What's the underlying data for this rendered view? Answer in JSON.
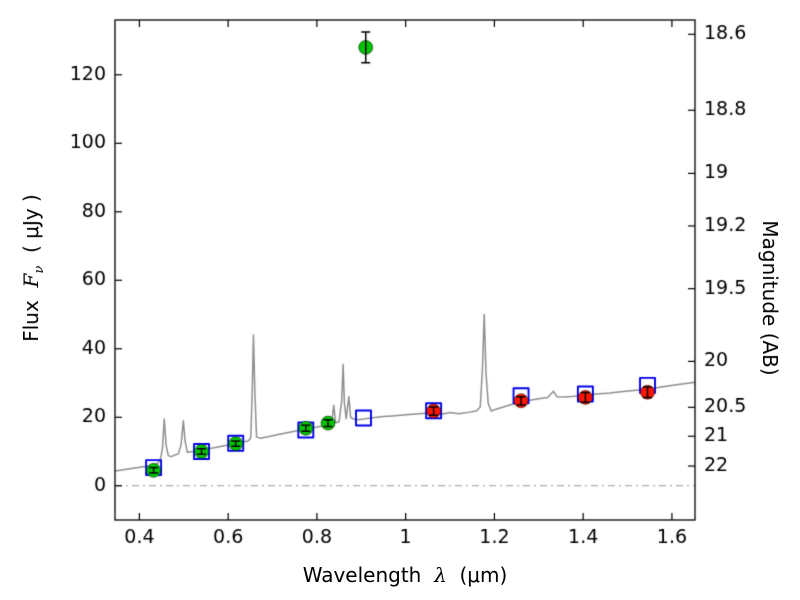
{
  "axes": {
    "xlabel_word": "Wavelength",
    "xlabel_sym": "λ",
    "xlabel_unit": "(μm)",
    "ylabel_flux": "Flux",
    "ylabel_F": "F",
    "ylabel_nu": "ν",
    "ylabel_unit": "( μJy )",
    "y2label": "Magnitude (AB)"
  },
  "chart_data": {
    "type": "scatter",
    "title": "",
    "xlabel": "Wavelength λ (μm)",
    "ylabel": "Flux Fν ( μJy )",
    "y2label": "Magnitude (AB)",
    "xlim": [
      0.345,
      1.652
    ],
    "ylim": [
      -10,
      136
    ],
    "grid": false,
    "legend": "none",
    "xticks": {
      "values": [
        0.4,
        0.6,
        0.8,
        1.0,
        1.2,
        1.4,
        1.6
      ],
      "labels": [
        "0.4",
        "0.6",
        "0.8",
        "1",
        "1.2",
        "1.4",
        "1.6"
      ]
    },
    "yticks": {
      "values": [
        0,
        20,
        40,
        60,
        80,
        100,
        120
      ],
      "labels": [
        "0",
        "20",
        "40",
        "60",
        "80",
        "100",
        "120"
      ]
    },
    "mag_axis": {
      "zeropoint_ab": 23.9,
      "ticks": [
        18.6,
        18.8,
        19,
        19.2,
        19.5,
        20,
        20.5,
        21,
        22
      ],
      "labels": [
        "18.6",
        "18.8",
        "19",
        "19.2",
        "19.5",
        "20",
        "20.5",
        "21",
        "22"
      ]
    },
    "zero_line": {
      "y": 0,
      "style": "dashdot",
      "color": "#9a9a9a"
    },
    "colors": {
      "spectrum": "#8f8f8f",
      "observed_green": "#00c400",
      "observed_red": "#ff1500",
      "model_square": "#0000ee",
      "errorbar": "#000000"
    },
    "series": [
      {
        "name": "model-spectrum",
        "type": "line",
        "color_key": "spectrum",
        "points": [
          [
            0.345,
            4.3
          ],
          [
            0.36,
            4.6
          ],
          [
            0.375,
            4.9
          ],
          [
            0.39,
            5.2
          ],
          [
            0.405,
            5.5
          ],
          [
            0.42,
            5.8
          ],
          [
            0.432,
            6.0
          ],
          [
            0.44,
            6.4
          ],
          [
            0.447,
            7.5
          ],
          [
            0.452,
            11.0
          ],
          [
            0.456,
            19.5
          ],
          [
            0.46,
            12.0
          ],
          [
            0.465,
            8.8
          ],
          [
            0.472,
            8.5
          ],
          [
            0.48,
            9.0
          ],
          [
            0.488,
            9.3
          ],
          [
            0.494,
            12.0
          ],
          [
            0.499,
            19.0
          ],
          [
            0.503,
            13.0
          ],
          [
            0.508,
            9.8
          ],
          [
            0.52,
            10.0
          ],
          [
            0.535,
            10.3
          ],
          [
            0.55,
            10.7
          ],
          [
            0.565,
            11.0
          ],
          [
            0.58,
            11.4
          ],
          [
            0.6,
            11.9
          ],
          [
            0.615,
            12.3
          ],
          [
            0.63,
            12.7
          ],
          [
            0.645,
            13.1
          ],
          [
            0.651,
            14.0
          ],
          [
            0.6545,
            29.0
          ],
          [
            0.657,
            44.0
          ],
          [
            0.66,
            28.0
          ],
          [
            0.664,
            14.2
          ],
          [
            0.672,
            13.9
          ],
          [
            0.69,
            14.3
          ],
          [
            0.71,
            14.9
          ],
          [
            0.73,
            15.4
          ],
          [
            0.75,
            15.9
          ],
          [
            0.77,
            16.4
          ],
          [
            0.79,
            16.9
          ],
          [
            0.81,
            17.4
          ],
          [
            0.825,
            17.8
          ],
          [
            0.833,
            18.2
          ],
          [
            0.838,
            23.5
          ],
          [
            0.842,
            18.4
          ],
          [
            0.85,
            18.7
          ],
          [
            0.856,
            25.0
          ],
          [
            0.859,
            35.5
          ],
          [
            0.862,
            24.0
          ],
          [
            0.866,
            19.6
          ],
          [
            0.872,
            26.0
          ],
          [
            0.876,
            20.0
          ],
          [
            0.884,
            19.4
          ],
          [
            0.895,
            19.3
          ],
          [
            0.91,
            19.6
          ],
          [
            0.93,
            19.9
          ],
          [
            0.95,
            20.2
          ],
          [
            0.97,
            20.4
          ],
          [
            1.0,
            20.7
          ],
          [
            1.03,
            21.0
          ],
          [
            1.06,
            21.3
          ],
          [
            1.08,
            20.9
          ],
          [
            1.1,
            21.4
          ],
          [
            1.12,
            21.0
          ],
          [
            1.145,
            21.5
          ],
          [
            1.16,
            21.9
          ],
          [
            1.168,
            23.0
          ],
          [
            1.173,
            34.0
          ],
          [
            1.177,
            50.0
          ],
          [
            1.181,
            33.0
          ],
          [
            1.186,
            24.0
          ],
          [
            1.193,
            21.8
          ],
          [
            1.2,
            22.2
          ],
          [
            1.22,
            23.0
          ],
          [
            1.24,
            23.8
          ],
          [
            1.26,
            24.5
          ],
          [
            1.28,
            25.0
          ],
          [
            1.3,
            25.4
          ],
          [
            1.32,
            25.8
          ],
          [
            1.333,
            27.6
          ],
          [
            1.341,
            26.0
          ],
          [
            1.36,
            25.9
          ],
          [
            1.38,
            26.1
          ],
          [
            1.4,
            26.4
          ],
          [
            1.43,
            26.8
          ],
          [
            1.46,
            27.1
          ],
          [
            1.49,
            27.5
          ],
          [
            1.52,
            27.9
          ],
          [
            1.55,
            28.3
          ],
          [
            1.58,
            28.9
          ],
          [
            1.61,
            29.5
          ],
          [
            1.64,
            30.0
          ],
          [
            1.652,
            30.2
          ]
        ]
      },
      {
        "name": "model-photometry-squares",
        "type": "square-open",
        "color_key": "model_square",
        "points": [
          [
            0.432,
            5.3
          ],
          [
            0.54,
            10.0
          ],
          [
            0.617,
            12.4
          ],
          [
            0.775,
            16.3
          ],
          [
            0.905,
            19.8
          ],
          [
            1.063,
            21.9
          ],
          [
            1.26,
            26.3
          ],
          [
            1.405,
            26.8
          ],
          [
            1.545,
            29.3
          ]
        ]
      },
      {
        "name": "observed-photometry-green",
        "type": "circle",
        "color_key": "observed_green",
        "points": [
          [
            0.432,
            4.5,
            0.8
          ],
          [
            0.54,
            10.0,
            0.8
          ],
          [
            0.617,
            12.3,
            0.8
          ],
          [
            0.775,
            16.8,
            0.9
          ],
          [
            0.825,
            18.3,
            1.0
          ],
          [
            0.91,
            128.0,
            4.5
          ]
        ]
      },
      {
        "name": "observed-photometry-red",
        "type": "circle",
        "color_key": "observed_red",
        "points": [
          [
            1.063,
            21.8,
            1.2
          ],
          [
            1.26,
            24.8,
            1.2
          ],
          [
            1.405,
            25.8,
            1.4
          ],
          [
            1.545,
            27.3,
            1.5
          ]
        ]
      }
    ]
  }
}
